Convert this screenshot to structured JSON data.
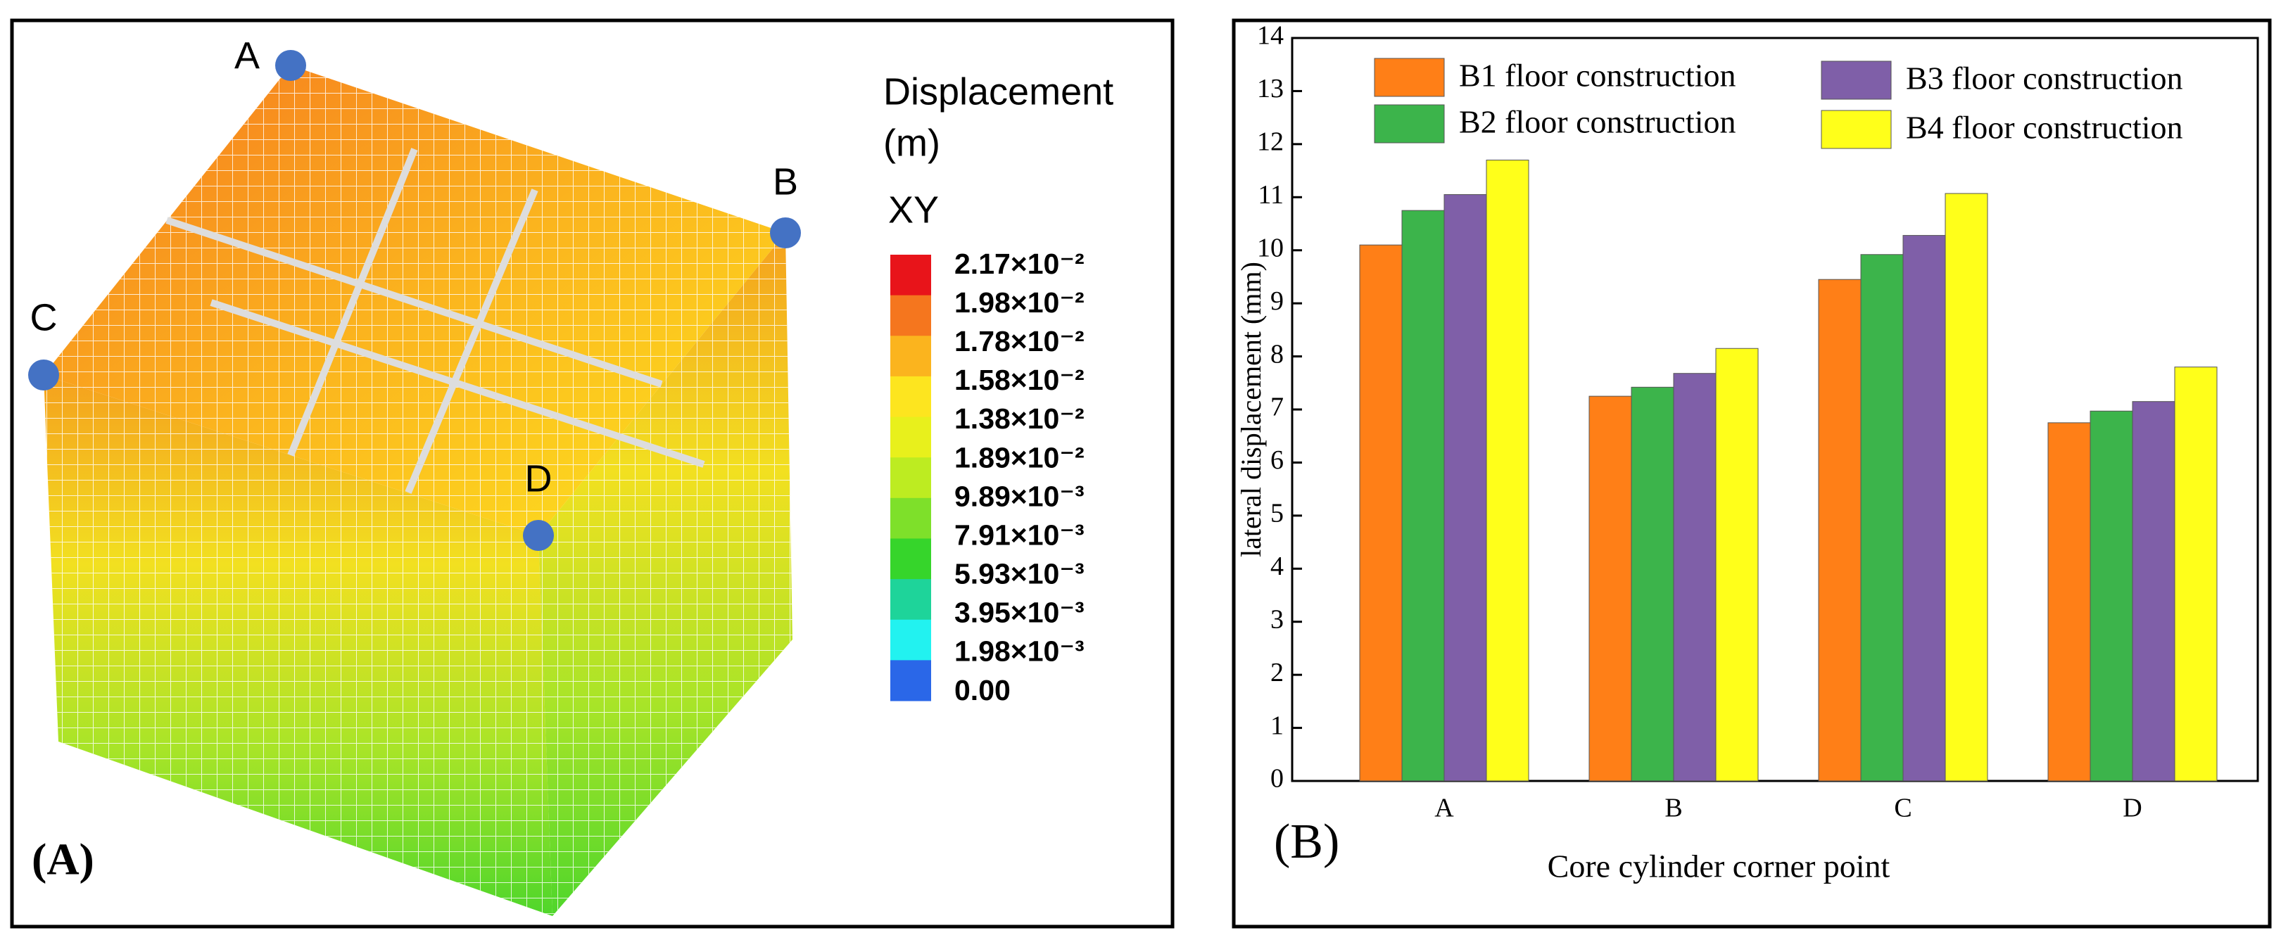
{
  "chart_data": [
    {
      "type": "contour-model",
      "panel_label": "(A)",
      "legend_title": [
        "Displacement",
        "(m)"
      ],
      "component": "XY",
      "points": [
        "A",
        "B",
        "C",
        "D"
      ],
      "levels": [
        {
          "value": 0.0217,
          "label": "2.17×10⁻²"
        },
        {
          "value": 0.0198,
          "label": "1.98×10⁻²"
        },
        {
          "value": 0.0178,
          "label": "1.78×10⁻²"
        },
        {
          "value": 0.0158,
          "label": "1.58×10⁻²"
        },
        {
          "value": 0.0138,
          "label": "1.38×10⁻²"
        },
        {
          "value": 0.0189,
          "label": "1.89×10⁻²"
        },
        {
          "value": 0.00989,
          "label": "9.89×10⁻³"
        },
        {
          "value": 0.00791,
          "label": "7.91×10⁻³"
        },
        {
          "value": 0.00593,
          "label": "5.93×10⁻³"
        },
        {
          "value": 0.00395,
          "label": "3.95×10⁻³"
        },
        {
          "value": 0.00198,
          "label": "1.98×10⁻³"
        },
        {
          "value": 0,
          "label": "0.00"
        }
      ],
      "colors": [
        "#e8141a",
        "#f5761e",
        "#fbb41e",
        "#fde51f",
        "#e8f01c",
        "#bdec21",
        "#7ee02a",
        "#36d52b",
        "#1ed49a",
        "#22f2f0",
        "#2a67e8"
      ]
    },
    {
      "type": "bar",
      "panel_label": "(B)",
      "x_label": "Core cylinder corner point",
      "y_label": "lateral displacement (mm)",
      "categories": [
        "A",
        "B",
        "C",
        "D"
      ],
      "series": [
        {
          "name": "B1 floor construction",
          "color": "#ff7f17",
          "values": [
            10.1,
            7.25,
            9.45,
            6.75
          ]
        },
        {
          "name": "B2 floor construction",
          "color": "#3cb44b",
          "values": [
            10.75,
            7.42,
            9.92,
            6.97
          ]
        },
        {
          "name": "B3 floor construction",
          "color": "#7f5fa8",
          "values": [
            11.05,
            7.68,
            10.28,
            7.15
          ]
        },
        {
          "name": "B4 floor construction",
          "color": "#ffff1a",
          "values": [
            11.7,
            8.15,
            11.07,
            7.8
          ]
        }
      ],
      "ylim": [
        0,
        14
      ],
      "yticks": [
        0,
        1,
        2,
        3,
        4,
        5,
        6,
        7,
        8,
        9,
        10,
        11,
        12,
        13,
        14
      ]
    }
  ]
}
